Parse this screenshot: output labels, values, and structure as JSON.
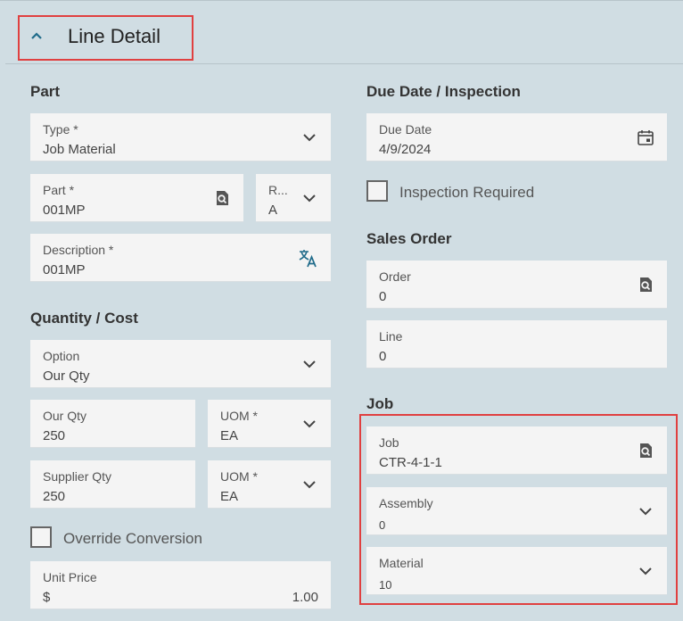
{
  "header": {
    "title": "Line Detail"
  },
  "part": {
    "title": "Part",
    "type": {
      "label": "Type *",
      "value": "Job Material"
    },
    "part": {
      "label": "Part *",
      "value": "001MP"
    },
    "revision": {
      "label": "R...",
      "value": "A"
    },
    "description": {
      "label": "Description *",
      "value": "001MP"
    }
  },
  "quantity_cost": {
    "title": "Quantity / Cost",
    "option": {
      "label": "Option",
      "value": "Our Qty"
    },
    "our_qty": {
      "label": "Our Qty",
      "value": "250"
    },
    "our_uom": {
      "label": "UOM *",
      "value": "EA"
    },
    "supplier_qty": {
      "label": "Supplier Qty",
      "value": "250"
    },
    "supplier_uom": {
      "label": "UOM *",
      "value": "EA"
    },
    "override_conversion": {
      "label": "Override Conversion",
      "checked": false
    },
    "unit_price": {
      "label": "Unit Price",
      "currency": "$",
      "value": "1.00"
    }
  },
  "due_date_inspection": {
    "title": "Due Date / Inspection",
    "due_date": {
      "label": "Due Date",
      "value": "4/9/2024"
    },
    "inspection_required": {
      "label": "Inspection Required",
      "checked": false
    }
  },
  "sales_order": {
    "title": "Sales Order",
    "order": {
      "label": "Order",
      "value": "0"
    },
    "line": {
      "label": "Line",
      "value": "0"
    }
  },
  "job": {
    "title": "Job",
    "job": {
      "label": "Job",
      "value": "CTR-4-1-1"
    },
    "assembly": {
      "label": "Assembly",
      "value": "0"
    },
    "material": {
      "label": "Material",
      "value": "10"
    }
  },
  "icons": {
    "collapse": "chevron-up-icon",
    "dropdown": "chevron-down-icon",
    "search": "search-icon",
    "translate": "translate-icon",
    "calendar": "calendar-icon"
  },
  "colors": {
    "background": "#d0dde3",
    "field": "#f4f4f4",
    "accent": "#1f6b8a",
    "highlight": "#e04040"
  }
}
